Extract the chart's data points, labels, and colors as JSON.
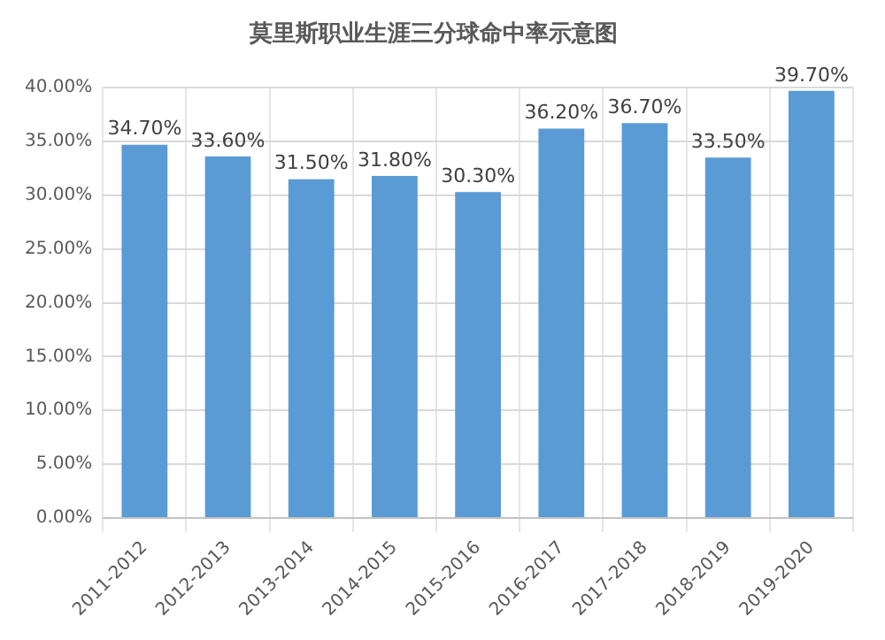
{
  "chart_data": {
    "type": "bar",
    "title": "莫里斯职业生涯三分球命中率示意图",
    "categories": [
      "2011-2012",
      "2012-2013",
      "2013-2014",
      "2014-2015",
      "2015-2016",
      "2016-2017",
      "2017-2018",
      "2018-2019",
      "2019-2020"
    ],
    "values": [
      34.7,
      33.6,
      31.5,
      31.8,
      30.3,
      36.2,
      36.7,
      33.5,
      39.7
    ],
    "value_labels": [
      "34.70%",
      "33.60%",
      "31.50%",
      "31.80%",
      "30.30%",
      "36.20%",
      "36.70%",
      "33.50%",
      "39.70%"
    ],
    "color": "#5b9bd5",
    "ylim": [
      0,
      40
    ],
    "yticks": [
      {
        "value": 0,
        "label": "0.00%"
      },
      {
        "value": 5,
        "label": "5.00%"
      },
      {
        "value": 10,
        "label": "10.00%"
      },
      {
        "value": 15,
        "label": "15.00%"
      },
      {
        "value": 20,
        "label": "20.00%"
      },
      {
        "value": 25,
        "label": "25.00%"
      },
      {
        "value": 30,
        "label": "30.00%"
      },
      {
        "value": 35,
        "label": "35.00%"
      },
      {
        "value": 40,
        "label": "40.00%"
      }
    ],
    "grid": true
  }
}
